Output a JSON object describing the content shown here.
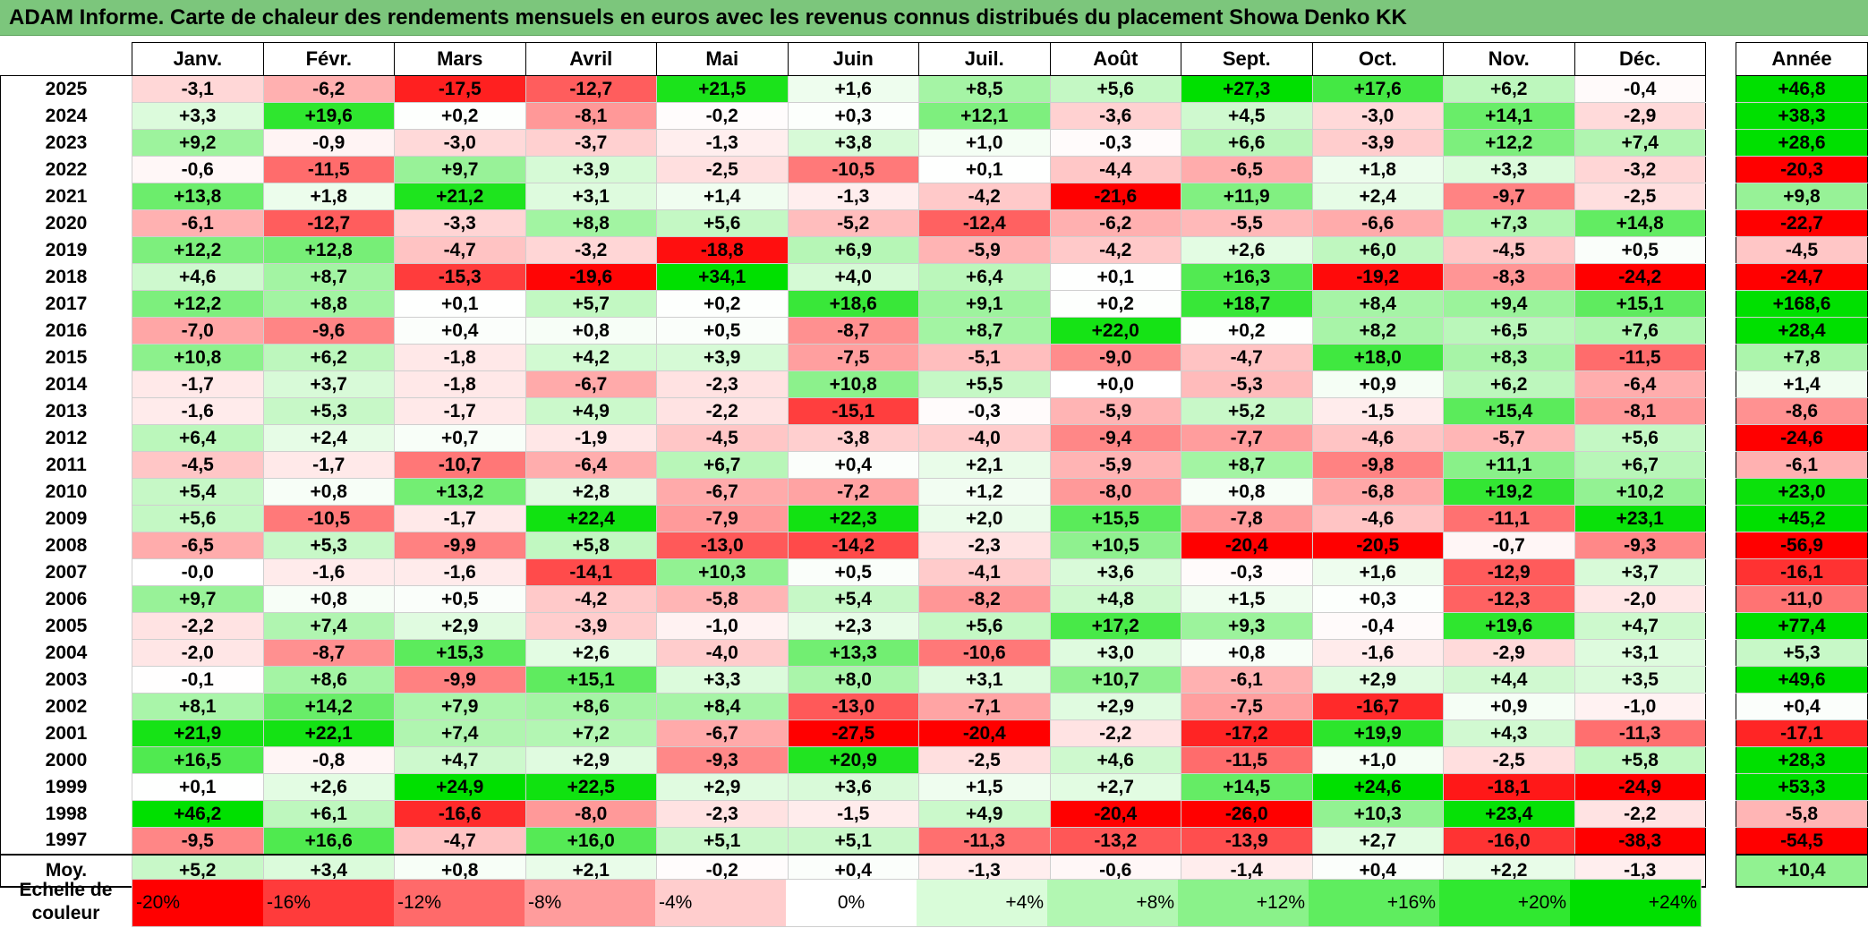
{
  "title": "ADAM Informe. Carte de chaleur des rendements mensuels en euros avec les revenus connus distribués du placement Showa Denko KK",
  "months": [
    "Janv.",
    "Févr.",
    "Mars",
    "Avril",
    "Mai",
    "Juin",
    "Juil.",
    "Août",
    "Sept.",
    "Oct.",
    "Nov.",
    "Déc."
  ],
  "annual_header": "Année",
  "average_label": "Moy.",
  "scale_label": "Echelle de couleur",
  "chart_data": {
    "type": "heatmap",
    "title": "ADAM Informe. Carte de chaleur des rendements mensuels en euros avec les revenus connus distribués du placement Showa Denko KK",
    "columns": [
      "Janv.",
      "Févr.",
      "Mars",
      "Avril",
      "Mai",
      "Juin",
      "Juil.",
      "Août",
      "Sept.",
      "Oct.",
      "Nov.",
      "Déc."
    ],
    "rows": [
      {
        "year": "2025",
        "values": [
          "-3,1",
          "-6,2",
          "-17,5",
          "-12,7",
          "+21,5",
          "+1,6",
          "+8,5",
          "+5,6",
          "+27,3",
          "+17,6",
          "+6,2",
          "-0,4"
        ],
        "annual": "+46,8"
      },
      {
        "year": "2024",
        "values": [
          "+3,3",
          "+19,6",
          "+0,2",
          "-8,1",
          "-0,2",
          "+0,3",
          "+12,1",
          "-3,6",
          "+4,5",
          "-3,0",
          "+14,1",
          "-2,9"
        ],
        "annual": "+38,3"
      },
      {
        "year": "2023",
        "values": [
          "+9,2",
          "-0,9",
          "-3,0",
          "-3,7",
          "-1,3",
          "+3,8",
          "+1,0",
          "-0,3",
          "+6,6",
          "-3,9",
          "+12,2",
          "+7,4"
        ],
        "annual": "+28,6"
      },
      {
        "year": "2022",
        "values": [
          "-0,6",
          "-11,5",
          "+9,7",
          "+3,9",
          "-2,5",
          "-10,5",
          "+0,1",
          "-4,4",
          "-6,5",
          "+1,8",
          "+3,3",
          "-3,2"
        ],
        "annual": "-20,3"
      },
      {
        "year": "2021",
        "values": [
          "+13,8",
          "+1,8",
          "+21,2",
          "+3,1",
          "+1,4",
          "-1,3",
          "-4,2",
          "-21,6",
          "+11,9",
          "+2,4",
          "-9,7",
          "-2,5"
        ],
        "annual": "+9,8"
      },
      {
        "year": "2020",
        "values": [
          "-6,1",
          "-12,7",
          "-3,3",
          "+8,8",
          "+5,6",
          "-5,2",
          "-12,4",
          "-6,2",
          "-5,5",
          "-6,6",
          "+7,3",
          "+14,8"
        ],
        "annual": "-22,7"
      },
      {
        "year": "2019",
        "values": [
          "+12,2",
          "+12,8",
          "-4,7",
          "-3,2",
          "-18,8",
          "+6,9",
          "-5,9",
          "-4,2",
          "+2,6",
          "+6,0",
          "-4,5",
          "+0,5"
        ],
        "annual": "-4,5"
      },
      {
        "year": "2018",
        "values": [
          "+4,6",
          "+8,7",
          "-15,3",
          "-19,6",
          "+34,1",
          "+4,0",
          "+6,4",
          "+0,1",
          "+16,3",
          "-19,2",
          "-8,3",
          "-24,2"
        ],
        "annual": "-24,7"
      },
      {
        "year": "2017",
        "values": [
          "+12,2",
          "+8,8",
          "+0,1",
          "+5,7",
          "+0,2",
          "+18,6",
          "+9,1",
          "+0,2",
          "+18,7",
          "+8,4",
          "+9,4",
          "+15,1"
        ],
        "annual": "+168,6"
      },
      {
        "year": "2016",
        "values": [
          "-7,0",
          "-9,6",
          "+0,4",
          "+0,8",
          "+0,5",
          "-8,7",
          "+8,7",
          "+22,0",
          "+0,2",
          "+8,2",
          "+6,5",
          "+7,6"
        ],
        "annual": "+28,4"
      },
      {
        "year": "2015",
        "values": [
          "+10,8",
          "+6,2",
          "-1,8",
          "+4,2",
          "+3,9",
          "-7,5",
          "-5,1",
          "-9,0",
          "-4,7",
          "+18,0",
          "+8,3",
          "-11,5"
        ],
        "annual": "+7,8"
      },
      {
        "year": "2014",
        "values": [
          "-1,7",
          "+3,7",
          "-1,8",
          "-6,7",
          "-2,3",
          "+10,8",
          "+5,5",
          "+0,0",
          "-5,3",
          "+0,9",
          "+6,2",
          "-6,4"
        ],
        "annual": "+1,4"
      },
      {
        "year": "2013",
        "values": [
          "-1,6",
          "+5,3",
          "-1,7",
          "+4,9",
          "-2,2",
          "-15,1",
          "-0,3",
          "-5,9",
          "+5,2",
          "-1,5",
          "+15,4",
          "-8,1"
        ],
        "annual": "-8,6"
      },
      {
        "year": "2012",
        "values": [
          "+6,4",
          "+2,4",
          "+0,7",
          "-1,9",
          "-4,5",
          "-3,8",
          "-4,0",
          "-9,4",
          "-7,7",
          "-4,6",
          "-5,7",
          "+5,6"
        ],
        "annual": "-24,6"
      },
      {
        "year": "2011",
        "values": [
          "-4,5",
          "-1,7",
          "-10,7",
          "-6,4",
          "+6,7",
          "+0,4",
          "+2,1",
          "-5,9",
          "+8,7",
          "-9,8",
          "+11,1",
          "+6,7"
        ],
        "annual": "-6,1"
      },
      {
        "year": "2010",
        "values": [
          "+5,4",
          "+0,8",
          "+13,2",
          "+2,8",
          "-6,7",
          "-7,2",
          "+1,2",
          "-8,0",
          "+0,8",
          "-6,8",
          "+19,2",
          "+10,2"
        ],
        "annual": "+23,0"
      },
      {
        "year": "2009",
        "values": [
          "+5,6",
          "-10,5",
          "-1,7",
          "+22,4",
          "-7,9",
          "+22,3",
          "+2,0",
          "+15,5",
          "-7,8",
          "-4,6",
          "-11,1",
          "+23,1"
        ],
        "annual": "+45,2"
      },
      {
        "year": "2008",
        "values": [
          "-6,5",
          "+5,3",
          "-9,9",
          "+5,8",
          "-13,0",
          "-14,2",
          "-2,3",
          "+10,5",
          "-20,4",
          "-20,5",
          "-0,7",
          "-9,3"
        ],
        "annual": "-56,9"
      },
      {
        "year": "2007",
        "values": [
          "-0,0",
          "-1,6",
          "-1,6",
          "-14,1",
          "+10,3",
          "+0,5",
          "-4,1",
          "+3,6",
          "-0,3",
          "+1,6",
          "-12,9",
          "+3,7"
        ],
        "annual": "-16,1"
      },
      {
        "year": "2006",
        "values": [
          "+9,7",
          "+0,8",
          "+0,5",
          "-4,2",
          "-5,8",
          "+5,4",
          "-8,2",
          "+4,8",
          "+1,5",
          "+0,3",
          "-12,3",
          "-2,0"
        ],
        "annual": "-11,0"
      },
      {
        "year": "2005",
        "values": [
          "-2,2",
          "+7,4",
          "+2,9",
          "-3,9",
          "-1,0",
          "+2,3",
          "+5,6",
          "+17,2",
          "+9,3",
          "-0,4",
          "+19,6",
          "+4,7"
        ],
        "annual": "+77,4"
      },
      {
        "year": "2004",
        "values": [
          "-2,0",
          "-8,7",
          "+15,3",
          "+2,6",
          "-4,0",
          "+13,3",
          "-10,6",
          "+3,0",
          "+0,8",
          "-1,6",
          "-2,9",
          "+3,1"
        ],
        "annual": "+5,3"
      },
      {
        "year": "2003",
        "values": [
          "-0,1",
          "+8,6",
          "-9,9",
          "+15,1",
          "+3,3",
          "+8,0",
          "+3,1",
          "+10,7",
          "-6,1",
          "+2,9",
          "+4,4",
          "+3,5"
        ],
        "annual": "+49,6"
      },
      {
        "year": "2002",
        "values": [
          "+8,1",
          "+14,2",
          "+7,9",
          "+8,6",
          "+8,4",
          "-13,0",
          "-7,1",
          "+2,9",
          "-7,5",
          "-16,7",
          "+0,9",
          "-1,0"
        ],
        "annual": "+0,4"
      },
      {
        "year": "2001",
        "values": [
          "+21,9",
          "+22,1",
          "+7,4",
          "+7,2",
          "-6,7",
          "-27,5",
          "-20,4",
          "-2,2",
          "-17,2",
          "+19,9",
          "+4,3",
          "-11,3"
        ],
        "annual": "-17,1"
      },
      {
        "year": "2000",
        "values": [
          "+16,5",
          "-0,8",
          "+4,7",
          "+2,9",
          "-9,3",
          "+20,9",
          "-2,5",
          "+4,6",
          "-11,5",
          "+1,0",
          "-2,5",
          "+5,8"
        ],
        "annual": "+28,3"
      },
      {
        "year": "1999",
        "values": [
          "+0,1",
          "+2,6",
          "+24,9",
          "+22,5",
          "+2,9",
          "+3,6",
          "+1,5",
          "+2,7",
          "+14,5",
          "+24,6",
          "-18,1",
          "-24,9"
        ],
        "annual": "+53,3"
      },
      {
        "year": "1998",
        "values": [
          "+46,2",
          "+6,1",
          "-16,6",
          "-8,0",
          "-2,3",
          "-1,5",
          "+4,9",
          "-20,4",
          "-26,0",
          "+10,3",
          "+23,4",
          "-2,2"
        ],
        "annual": "-5,8"
      },
      {
        "year": "1997",
        "values": [
          "-9,5",
          "+16,6",
          "-4,7",
          "+16,0",
          "+5,1",
          "+5,1",
          "-11,3",
          "-13,2",
          "-13,9",
          "+2,7",
          "-16,0",
          "-38,3"
        ],
        "annual": "-54,5"
      }
    ],
    "average": {
      "values": [
        "+5,2",
        "+3,4",
        "+0,8",
        "+2,1",
        "-0,2",
        "+0,4",
        "-1,3",
        "-0,6",
        "-1,4",
        "+0,4",
        "+2,2",
        "-1,3"
      ],
      "annual": "+10,4"
    },
    "color_scale": [
      {
        "label": "-20%",
        "value": -20,
        "color": "#ff0000",
        "align": "left"
      },
      {
        "label": "-16%",
        "value": -16,
        "color": "#ff3b3b",
        "align": "left"
      },
      {
        "label": "-12%",
        "value": -12,
        "color": "#ff6a6a",
        "align": "left"
      },
      {
        "label": "-8%",
        "value": -8,
        "color": "#ff9c9c",
        "align": "left"
      },
      {
        "label": "-4%",
        "value": -4,
        "color": "#ffcdcd",
        "align": "left"
      },
      {
        "label": "0%",
        "value": 0,
        "color": "#ffffff",
        "align": "center"
      },
      {
        "label": "+4%",
        "value": 4,
        "color": "#d9fcd9",
        "align": "right"
      },
      {
        "label": "+8%",
        "value": 8,
        "color": "#b2f7b2",
        "align": "right"
      },
      {
        "label": "+12%",
        "value": 12,
        "color": "#8af28a",
        "align": "right"
      },
      {
        "label": "+16%",
        "value": 16,
        "color": "#5fed5f",
        "align": "right"
      },
      {
        "label": "+20%",
        "value": 20,
        "color": "#30e830",
        "align": "right"
      },
      {
        "label": "+24%",
        "value": 24,
        "color": "#00e000",
        "align": "right"
      }
    ]
  }
}
